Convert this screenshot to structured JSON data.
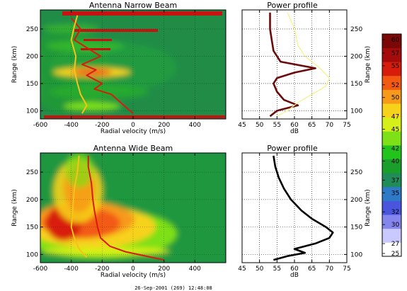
{
  "footer": "26-Sep-2001 (269) 12:48:08",
  "colorbar": {
    "ticks": [
      60,
      57,
      55,
      52,
      50,
      47,
      45,
      42,
      40,
      37,
      35,
      32,
      30,
      27,
      25
    ],
    "range": [
      25,
      60
    ],
    "colors": [
      "#ffffff",
      "#c9c9ff",
      "#8585ee",
      "#4a55dd",
      "#2f7ac6",
      "#1f8c5a",
      "#1aa02a",
      "#22c41c",
      "#7ee017",
      "#d6ef19",
      "#f7d21a",
      "#f79a1a",
      "#f25a12",
      "#d81c0c",
      "#a60b0b",
      "#7c0707"
    ]
  },
  "chart_data": [
    {
      "type": "heatmap",
      "title": "Antenna Narrow Beam",
      "xlabel": "Radial velocity (m/s)",
      "ylabel": "Range (km)",
      "xlim": [
        -600,
        600
      ],
      "ylim": [
        85,
        285
      ],
      "xticks": [
        -600,
        -400,
        -200,
        0,
        200,
        400
      ],
      "yticks": [
        100,
        150,
        200,
        250
      ],
      "color_scale": "dB 25-60",
      "bright_bands_km": [
        95,
        115,
        150,
        175,
        205,
        230,
        250,
        280
      ],
      "series": [
        {
          "color": "#d81c0c",
          "x": [
            0,
            -60,
            -140,
            -250,
            -200,
            -300,
            -240,
            -330,
            -210,
            -380,
            -340,
            -400
          ],
          "y": [
            95,
            110,
            130,
            140,
            150,
            165,
            175,
            185,
            200,
            230,
            250,
            270
          ]
        },
        {
          "color": "#f7c21a",
          "x": [
            -330,
            -300,
            -340,
            -360,
            -380,
            -370,
            -400,
            -380,
            -360
          ],
          "y": [
            95,
            110,
            130,
            150,
            175,
            200,
            230,
            255,
            275
          ]
        }
      ]
    },
    {
      "type": "line",
      "title": "Power profile",
      "xlabel": "dB",
      "xlim": [
        45,
        75
      ],
      "ylim": [
        85,
        285
      ],
      "xticks": [
        45,
        50,
        55,
        60,
        65,
        70,
        75
      ],
      "yticks": [
        100,
        150,
        200,
        250
      ],
      "series": [
        {
          "color": "#6b0a0a",
          "x": [
            53,
            55,
            61,
            57,
            55,
            54,
            55,
            60,
            66,
            56,
            54,
            53.5,
            53,
            53
          ],
          "y": [
            90,
            100,
            110,
            120,
            135,
            150,
            160,
            170,
            178,
            190,
            210,
            230,
            250,
            280
          ]
        },
        {
          "color": "#f2f28a",
          "x": [
            55,
            58,
            61,
            65,
            69,
            70,
            67,
            63,
            61,
            60,
            58
          ],
          "y": [
            90,
            100,
            115,
            130,
            145,
            160,
            180,
            200,
            220,
            250,
            280
          ]
        }
      ]
    },
    {
      "type": "heatmap",
      "title": "Antenna Wide Beam",
      "xlabel": "Radial velocity (m/s)",
      "ylabel": "Range (km)",
      "xlim": [
        -600,
        600
      ],
      "ylim": [
        85,
        285
      ],
      "xticks": [
        -600,
        -400,
        -200,
        0,
        200,
        400
      ],
      "yticks": [
        100,
        150,
        200,
        250
      ],
      "color_scale": "dB 25-60",
      "series": [
        {
          "color": "#d81c0c",
          "x": [
            200,
            -50,
            -150,
            -210,
            -230,
            -250,
            -260,
            -270,
            -290,
            -290
          ],
          "y": [
            90,
            105,
            115,
            130,
            150,
            180,
            200,
            230,
            260,
            280
          ]
        },
        {
          "color": "#f7c21a",
          "x": [
            -300,
            -350,
            -380,
            -400,
            -390,
            -380,
            -360,
            -350
          ],
          "y": [
            95,
            110,
            130,
            150,
            180,
            220,
            250,
            280
          ]
        }
      ]
    },
    {
      "type": "line",
      "title": "Power profile",
      "xlabel": "dB",
      "xlim": [
        45,
        75
      ],
      "ylim": [
        85,
        285
      ],
      "xticks": [
        45,
        50,
        55,
        60,
        65,
        70,
        75
      ],
      "yticks": [
        100,
        150,
        200,
        250
      ],
      "series": [
        {
          "color": "#000000",
          "x": [
            54,
            58,
            63,
            60,
            66,
            70,
            71,
            69,
            65,
            62,
            59,
            57,
            55.5,
            54.5,
            54
          ],
          "y": [
            90,
            97,
            103,
            110,
            120,
            130,
            140,
            150,
            165,
            180,
            200,
            220,
            240,
            260,
            280
          ]
        }
      ]
    }
  ]
}
